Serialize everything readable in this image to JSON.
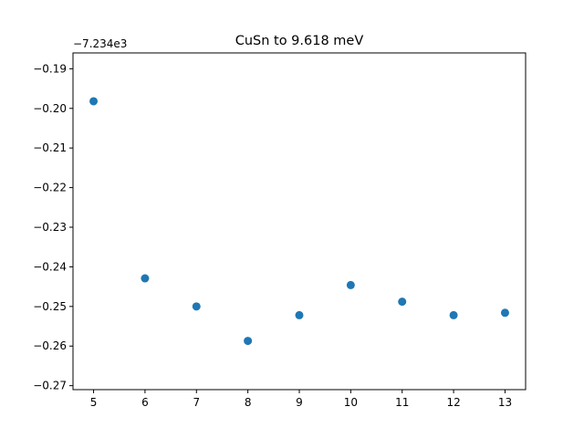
{
  "chart_data": {
    "type": "scatter",
    "title": "CuSn to 9.618 meV",
    "xlabel": "",
    "ylabel": "",
    "y_offset_label": "−7.234e3",
    "y_offset_value": -7234,
    "x": [
      5,
      6,
      7,
      8,
      9,
      10,
      11,
      12,
      13
    ],
    "y": [
      -0.1982,
      -0.2429,
      -0.25,
      -0.2587,
      -0.2522,
      -0.2446,
      -0.2488,
      -0.2522,
      -0.2516
    ],
    "xlim": [
      4.6,
      13.4
    ],
    "ylim": [
      -0.271,
      -0.186
    ],
    "x_ticks": [
      5,
      6,
      7,
      8,
      9,
      10,
      11,
      12,
      13
    ],
    "x_tick_labels": [
      "5",
      "6",
      "7",
      "8",
      "9",
      "10",
      "11",
      "12",
      "13"
    ],
    "y_ticks": [
      -0.27,
      -0.26,
      -0.25,
      -0.24,
      -0.23,
      -0.22,
      -0.21,
      -0.2,
      -0.19
    ],
    "y_tick_labels": [
      "−0.27",
      "−0.26",
      "−0.25",
      "−0.24",
      "−0.23",
      "−0.22",
      "−0.21",
      "−0.20",
      "−0.19"
    ],
    "grid": false,
    "legend": "none",
    "marker_color": "#1f77b4"
  }
}
